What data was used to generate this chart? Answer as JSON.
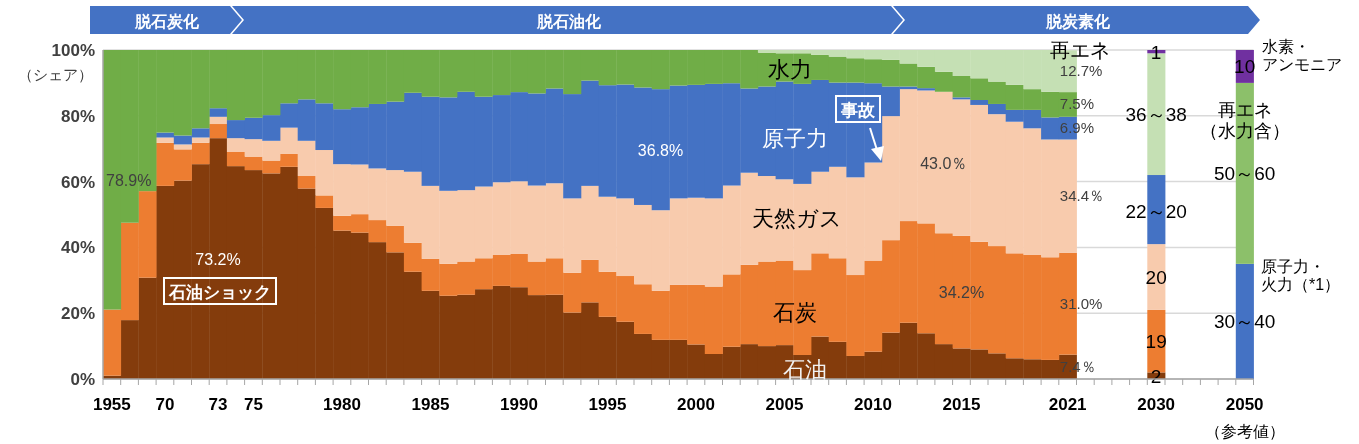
{
  "chart_data": {
    "type": "bar",
    "stacked": true,
    "ylabel": "（シェア）",
    "ylim": [
      0,
      100
    ],
    "yticks": [
      {
        "value": 0,
        "label": "0%"
      },
      {
        "value": 20,
        "label": "20%"
      },
      {
        "value": 40,
        "label": "40%"
      },
      {
        "value": 60,
        "label": "60%"
      },
      {
        "value": 80,
        "label": "80%"
      },
      {
        "value": 100,
        "label": "100%"
      }
    ],
    "grid": "y",
    "categories": [
      "1955",
      null,
      null,
      "70",
      null,
      null,
      "73",
      null,
      "75",
      null,
      null,
      null,
      null,
      "1980",
      null,
      null,
      null,
      null,
      "1985",
      null,
      null,
      null,
      null,
      "1990",
      null,
      null,
      null,
      null,
      "1995",
      null,
      null,
      null,
      null,
      "2000",
      null,
      null,
      null,
      null,
      "2005",
      null,
      null,
      null,
      null,
      "2010",
      null,
      null,
      null,
      null,
      "2015",
      null,
      null,
      null,
      null,
      null,
      "2021",
      null,
      null,
      null,
      null,
      "2030",
      null,
      null,
      null,
      null,
      "2050"
    ],
    "series": [
      {
        "name": "原子力・火力（*1）",
        "color": "#4472c4",
        "values": [
          null,
          null,
          null,
          null,
          null,
          null,
          null,
          null,
          null,
          null,
          null,
          null,
          null,
          null,
          null,
          null,
          null,
          null,
          null,
          null,
          null,
          null,
          null,
          null,
          null,
          null,
          null,
          null,
          null,
          null,
          null,
          null,
          null,
          null,
          null,
          null,
          null,
          null,
          null,
          null,
          null,
          null,
          null,
          null,
          null,
          null,
          null,
          null,
          null,
          null,
          null,
          null,
          null,
          null,
          null,
          null,
          null,
          null,
          null,
          null,
          null,
          null,
          null,
          null,
          35
        ],
        "value_labels": [
          null,
          null,
          null,
          null,
          null,
          null,
          null,
          null,
          null,
          null,
          null,
          null,
          null,
          null,
          null,
          null,
          null,
          null,
          null,
          null,
          null,
          null,
          null,
          null,
          null,
          null,
          null,
          null,
          null,
          null,
          null,
          null,
          null,
          null,
          null,
          null,
          null,
          null,
          null,
          null,
          null,
          null,
          null,
          null,
          null,
          null,
          null,
          null,
          null,
          null,
          null,
          null,
          null,
          null,
          null,
          null,
          null,
          null,
          null,
          null,
          null,
          null,
          null,
          null,
          null
        ]
      },
      {
        "name": "石油",
        "color": "#843c0c",
        "values": [
          1.0,
          17.9,
          30.8,
          58.7,
          60.3,
          65.3,
          73.2,
          64.7,
          63.5,
          62.5,
          64.5,
          57.9,
          52.0,
          45.1,
          44.5,
          41.6,
          38.5,
          32.6,
          26.8,
          25.3,
          25.6,
          27.3,
          28.3,
          27.9,
          25.5,
          25.6,
          20.2,
          23.3,
          18.9,
          17.4,
          13.7,
          11.9,
          11.9,
          10.5,
          7.6,
          9.8,
          10.6,
          10.0,
          10.3,
          7.3,
          12.9,
          11.3,
          7.0,
          8.3,
          14.1,
          17.1,
          13.9,
          10.6,
          9.3,
          9.0,
          7.8,
          6.3,
          6.0,
          5.8,
          7.4,
          null,
          null,
          null,
          null,
          2,
          null,
          null,
          null,
          null,
          null
        ],
        "value_labels": [
          null,
          null,
          null,
          null,
          null,
          null,
          "73.2%",
          null,
          null,
          null,
          null,
          null,
          null,
          null,
          null,
          null,
          null,
          null,
          null,
          null,
          null,
          null,
          null,
          null,
          null,
          null,
          null,
          null,
          null,
          null,
          null,
          null,
          null,
          null,
          null,
          null,
          null,
          null,
          null,
          null,
          null,
          null,
          null,
          null,
          null,
          null,
          null,
          null,
          null,
          null,
          null,
          null,
          null,
          null,
          "7.4％",
          null,
          null,
          null,
          null,
          "2",
          null,
          null,
          null,
          null,
          null
        ]
      },
      {
        "name": "石炭",
        "color": "#ed7d31",
        "values": [
          20.1,
          29.6,
          26.3,
          13.1,
          9.5,
          6.5,
          4.3,
          4.3,
          4.1,
          3.9,
          3.9,
          3.8,
          3.8,
          4.5,
          5.6,
          6.7,
          8.1,
          8.8,
          9.7,
          9.7,
          10.1,
          9.4,
          9.4,
          10.1,
          10.2,
          11.1,
          12.1,
          12.9,
          13.7,
          13.9,
          15.1,
          14.9,
          16.7,
          18.1,
          20.5,
          22.0,
          24.1,
          25.7,
          25.7,
          25.8,
          25.3,
          25.4,
          24.6,
          27.7,
          28.1,
          30.9,
          33.4,
          33.7,
          34.2,
          32.7,
          32.6,
          31.9,
          31.7,
          31.2,
          31.0,
          null,
          null,
          null,
          null,
          19,
          null,
          null,
          null,
          null,
          null
        ],
        "value_labels": [
          null,
          null,
          null,
          null,
          null,
          null,
          null,
          null,
          null,
          null,
          null,
          null,
          null,
          null,
          null,
          null,
          null,
          null,
          null,
          null,
          null,
          null,
          null,
          null,
          null,
          null,
          null,
          null,
          null,
          null,
          null,
          null,
          null,
          null,
          null,
          null,
          null,
          null,
          null,
          null,
          null,
          null,
          null,
          null,
          null,
          null,
          null,
          null,
          "34.2%",
          null,
          null,
          null,
          null,
          null,
          "31.0%",
          null,
          null,
          null,
          null,
          "19",
          null,
          null,
          null,
          null,
          null
        ]
      },
      {
        "name": "天然ガス",
        "color": "#f8cbad",
        "values": [
          null,
          null,
          null,
          1.6,
          1.5,
          1.6,
          2.2,
          4.2,
          5.3,
          6.0,
          8.0,
          10.7,
          13.8,
          15.7,
          15.1,
          15.7,
          16.9,
          21.6,
          22.2,
          22.2,
          21.7,
          21.8,
          22.1,
          22.1,
          23.1,
          22.8,
          22.6,
          22.5,
          22.8,
          23.6,
          24.1,
          24.5,
          26.3,
          26.5,
          26.8,
          27.0,
          28.0,
          26.0,
          24.7,
          26.2,
          24.8,
          27.8,
          29.7,
          29.8,
          37.7,
          40.1,
          40.4,
          43.0,
          41.5,
          41.6,
          40.1,
          40.0,
          38.5,
          35.8,
          34.4,
          null,
          null,
          null,
          null,
          20,
          null,
          null,
          null,
          null,
          null
        ],
        "value_labels": [
          null,
          null,
          null,
          null,
          null,
          null,
          null,
          null,
          null,
          null,
          null,
          null,
          null,
          null,
          null,
          null,
          null,
          null,
          null,
          null,
          null,
          null,
          null,
          null,
          null,
          null,
          null,
          null,
          null,
          null,
          null,
          null,
          null,
          null,
          null,
          null,
          null,
          null,
          null,
          null,
          null,
          null,
          null,
          null,
          null,
          null,
          null,
          "43.0％",
          null,
          null,
          null,
          null,
          null,
          null,
          "34.4％",
          null,
          null,
          null,
          null,
          "20",
          null,
          null,
          null,
          null,
          null
        ]
      },
      {
        "name": "原子力",
        "color": "#4472c4",
        "values": [
          null,
          null,
          null,
          1.5,
          2.7,
          2.8,
          2.6,
          5.5,
          6.5,
          7.8,
          7.4,
          12.6,
          14.2,
          16.7,
          17.4,
          19.6,
          20.8,
          24.0,
          27.1,
          28.4,
          29.9,
          27.3,
          26.5,
          27.1,
          28.0,
          28.8,
          31.7,
          32.0,
          33.9,
          34.6,
          35.7,
          36.8,
          34.3,
          34.3,
          34.8,
          31.1,
          25.6,
          27.2,
          29.7,
          30.4,
          27.9,
          25.6,
          28.8,
          24.1,
          9.0,
          0.8,
          0.7,
          null,
          0.6,
          1.5,
          3.1,
          3.6,
          5.6,
          6.7,
          6.9,
          null,
          null,
          null,
          null,
          21,
          null,
          null,
          null,
          null,
          null
        ],
        "value_labels": [
          null,
          null,
          null,
          null,
          null,
          null,
          null,
          null,
          null,
          null,
          null,
          null,
          null,
          null,
          null,
          null,
          null,
          null,
          null,
          null,
          null,
          null,
          null,
          null,
          null,
          null,
          null,
          null,
          null,
          null,
          null,
          "36.8%",
          null,
          null,
          null,
          null,
          null,
          null,
          null,
          null,
          null,
          null,
          null,
          null,
          null,
          null,
          null,
          null,
          null,
          null,
          null,
          null,
          null,
          null,
          "6.9%",
          null,
          null,
          null,
          null,
          null,
          null,
          null,
          null,
          null,
          null
        ]
      },
      {
        "name": "水力",
        "color": "#70ad47",
        "values": [
          78.9,
          52.5,
          42.9,
          25.1,
          26.0,
          23.8,
          17.7,
          21.3,
          20.6,
          19.8,
          16.2,
          15.0,
          16.2,
          18.0,
          17.4,
          16.4,
          15.7,
          13.0,
          14.2,
          14.4,
          12.7,
          14.2,
          13.7,
          12.8,
          13.2,
          11.7,
          13.4,
          9.3,
          10.7,
          10.5,
          11.4,
          11.9,
          10.8,
          10.6,
          10.3,
          10.1,
          11.7,
          10.3,
          8.6,
          9.3,
          7.6,
          7.9,
          7.4,
          7.3,
          8.1,
          7.0,
          6.5,
          6.1,
          6.5,
          6.6,
          6.8,
          7.6,
          6.3,
          7.8,
          7.5,
          null,
          null,
          null,
          null,
          null,
          null,
          null,
          null,
          null,
          null
        ],
        "value_labels": [
          "78.9%",
          null,
          null,
          null,
          null,
          null,
          null,
          null,
          null,
          null,
          null,
          null,
          null,
          null,
          null,
          null,
          null,
          null,
          null,
          null,
          null,
          null,
          null,
          null,
          null,
          null,
          null,
          null,
          null,
          null,
          null,
          null,
          null,
          null,
          null,
          null,
          null,
          null,
          null,
          null,
          null,
          null,
          null,
          null,
          null,
          null,
          null,
          null,
          null,
          null,
          null,
          null,
          null,
          null,
          "7.5%",
          null,
          null,
          null,
          null,
          null,
          null,
          null,
          null,
          null,
          null
        ]
      },
      {
        "name": "再エネ",
        "color": "#c5e0b4",
        "values": [
          null,
          null,
          null,
          null,
          null,
          null,
          null,
          null,
          null,
          null,
          null,
          null,
          null,
          null,
          null,
          null,
          null,
          null,
          null,
          null,
          null,
          null,
          null,
          null,
          null,
          null,
          null,
          null,
          null,
          null,
          null,
          null,
          null,
          null,
          null,
          null,
          null,
          0.8,
          1.0,
          1.0,
          1.5,
          2.0,
          2.5,
          2.8,
          3.0,
          4.1,
          5.1,
          6.6,
          7.9,
          8.6,
          9.6,
          10.6,
          11.9,
          12.7,
          12.7,
          null,
          null,
          null,
          null,
          37,
          null,
          null,
          null,
          null,
          null
        ],
        "value_labels": [
          null,
          null,
          null,
          null,
          null,
          null,
          null,
          null,
          null,
          null,
          null,
          null,
          null,
          null,
          null,
          null,
          null,
          null,
          null,
          null,
          null,
          null,
          null,
          null,
          null,
          null,
          null,
          null,
          null,
          null,
          null,
          null,
          null,
          null,
          null,
          null,
          null,
          null,
          null,
          null,
          null,
          null,
          null,
          null,
          null,
          null,
          null,
          null,
          null,
          null,
          null,
          null,
          null,
          null,
          "12.7%",
          null,
          null,
          null,
          null,
          null,
          null,
          null,
          null,
          null,
          null
        ]
      },
      {
        "name": "再エネ（水力含）",
        "color": "#8cc06a",
        "values": [
          null,
          null,
          null,
          null,
          null,
          null,
          null,
          null,
          null,
          null,
          null,
          null,
          null,
          null,
          null,
          null,
          null,
          null,
          null,
          null,
          null,
          null,
          null,
          null,
          null,
          null,
          null,
          null,
          null,
          null,
          null,
          null,
          null,
          null,
          null,
          null,
          null,
          null,
          null,
          null,
          null,
          null,
          null,
          null,
          null,
          null,
          null,
          null,
          null,
          null,
          null,
          null,
          null,
          null,
          null,
          null,
          null,
          null,
          null,
          null,
          null,
          null,
          null,
          null,
          55
        ],
        "value_labels": [
          null,
          null,
          null,
          null,
          null,
          null,
          null,
          null,
          null,
          null,
          null,
          null,
          null,
          null,
          null,
          null,
          null,
          null,
          null,
          null,
          null,
          null,
          null,
          null,
          null,
          null,
          null,
          null,
          null,
          null,
          null,
          null,
          null,
          null,
          null,
          null,
          null,
          null,
          null,
          null,
          null,
          null,
          null,
          null,
          null,
          null,
          null,
          null,
          null,
          null,
          null,
          null,
          null,
          null,
          null,
          null,
          null,
          null,
          null,
          null,
          null,
          null,
          null,
          null,
          null
        ]
      },
      {
        "name": "水素・アンモニア",
        "color": "#7030a0",
        "values": [
          null,
          null,
          null,
          null,
          null,
          null,
          null,
          null,
          null,
          null,
          null,
          null,
          null,
          null,
          null,
          null,
          null,
          null,
          null,
          null,
          null,
          null,
          null,
          null,
          null,
          null,
          null,
          null,
          null,
          null,
          null,
          null,
          null,
          null,
          null,
          null,
          null,
          null,
          null,
          null,
          null,
          null,
          null,
          null,
          null,
          null,
          null,
          null,
          null,
          null,
          null,
          null,
          null,
          null,
          null,
          null,
          null,
          null,
          null,
          1,
          null,
          null,
          null,
          null,
          10
        ],
        "value_labels": [
          null,
          null,
          null,
          null,
          null,
          null,
          null,
          null,
          null,
          null,
          null,
          null,
          null,
          null,
          null,
          null,
          null,
          null,
          null,
          null,
          null,
          null,
          null,
          null,
          null,
          null,
          null,
          null,
          null,
          null,
          null,
          null,
          null,
          null,
          null,
          null,
          null,
          null,
          null,
          null,
          null,
          null,
          null,
          null,
          null,
          null,
          null,
          null,
          null,
          null,
          null,
          null,
          null,
          null,
          null,
          null,
          null,
          null,
          null,
          "1",
          null,
          null,
          null,
          null,
          "10"
        ]
      }
    ],
    "annotations": [
      "脱石炭化",
      "脱石油化",
      "脱炭素化",
      "石油ショック",
      "事故",
      "（参考値）",
      "22～20",
      "36～38",
      "50～60",
      "30～40"
    ]
  }
}
